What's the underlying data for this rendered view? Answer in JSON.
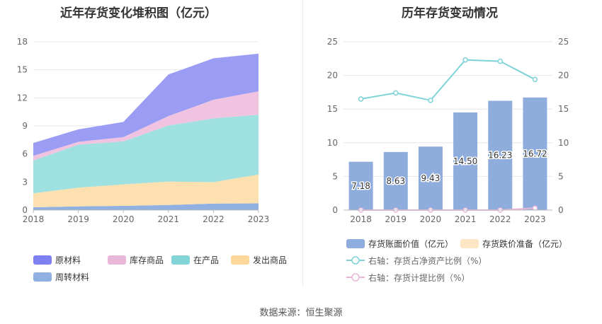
{
  "footer": {
    "source": "数据来源：恒生聚源"
  },
  "chart_data": [
    {
      "type": "area",
      "stacked": true,
      "title": "近年存货变化堆积图（亿元）",
      "x": [
        "2018",
        "2019",
        "2020",
        "2021",
        "2022",
        "2023"
      ],
      "ylim": [
        0,
        18
      ],
      "yticks": [
        "0",
        "3",
        "6",
        "9",
        "12",
        "15",
        "18"
      ],
      "grid": true,
      "legend_position": "bottom",
      "series": [
        {
          "name": "周转材料",
          "color": "#8fb0e0",
          "values": [
            0.3,
            0.4,
            0.45,
            0.55,
            0.7,
            0.72
          ]
        },
        {
          "name": "发出商品",
          "color": "#fde0b0",
          "values": [
            1.5,
            2.0,
            2.3,
            2.5,
            2.3,
            3.08
          ]
        },
        {
          "name": "在产品",
          "color": "#9fe0e0",
          "values": [
            3.5,
            4.6,
            4.6,
            6.0,
            6.8,
            6.4
          ]
        },
        {
          "name": "库存商品",
          "color": "#f0c4e0",
          "values": [
            0.5,
            0.3,
            0.45,
            1.0,
            2.0,
            2.5
          ]
        },
        {
          "name": "原材料",
          "color": "#9b9df5",
          "values": [
            1.38,
            1.33,
            1.63,
            4.45,
            4.43,
            4.02
          ]
        }
      ],
      "legend": [
        {
          "name": "原材料",
          "color": "#7e7ff0"
        },
        {
          "name": "库存商品",
          "color": "#e9b8d9"
        },
        {
          "name": "在产品",
          "color": "#82d4d8"
        },
        {
          "name": "发出商品",
          "color": "#fdd89a"
        },
        {
          "name": "周转材料",
          "color": "#8fb0e0"
        }
      ]
    },
    {
      "type": "bar",
      "title": "历年存货变动情况",
      "categories": [
        "2018",
        "2019",
        "2020",
        "2021",
        "2022",
        "2023"
      ],
      "ylim": [
        0,
        25
      ],
      "y2lim": [
        0,
        25
      ],
      "yticks": [
        "0",
        "5",
        "10",
        "15",
        "20",
        "25"
      ],
      "grid": true,
      "legend_position": "bottom",
      "series": [
        {
          "name": "存货账面价值（亿元）",
          "type": "bar",
          "color": "#8eacdc",
          "values": [
            7.18,
            8.63,
            9.43,
            14.5,
            16.23,
            16.72
          ],
          "labels": [
            "7.18",
            "8.63",
            "9.43",
            "14.50",
            "16.23",
            "16.72"
          ]
        },
        {
          "name": "存货跌价准备（亿元）",
          "type": "bar",
          "color": "#fde6c4",
          "values": [
            0,
            0,
            0,
            0,
            0,
            0.05
          ]
        },
        {
          "name": "右轴：存货占净资产比例（%）",
          "type": "line",
          "axis": "right",
          "color": "#7fd3d8",
          "values": [
            16.5,
            17.4,
            16.3,
            22.3,
            22.1,
            19.4
          ]
        },
        {
          "name": "右轴：存货计提比例（%）",
          "type": "line",
          "axis": "right",
          "color": "#e9b8d9",
          "values": [
            0,
            0,
            0,
            0,
            0,
            0.3
          ]
        }
      ]
    }
  ]
}
